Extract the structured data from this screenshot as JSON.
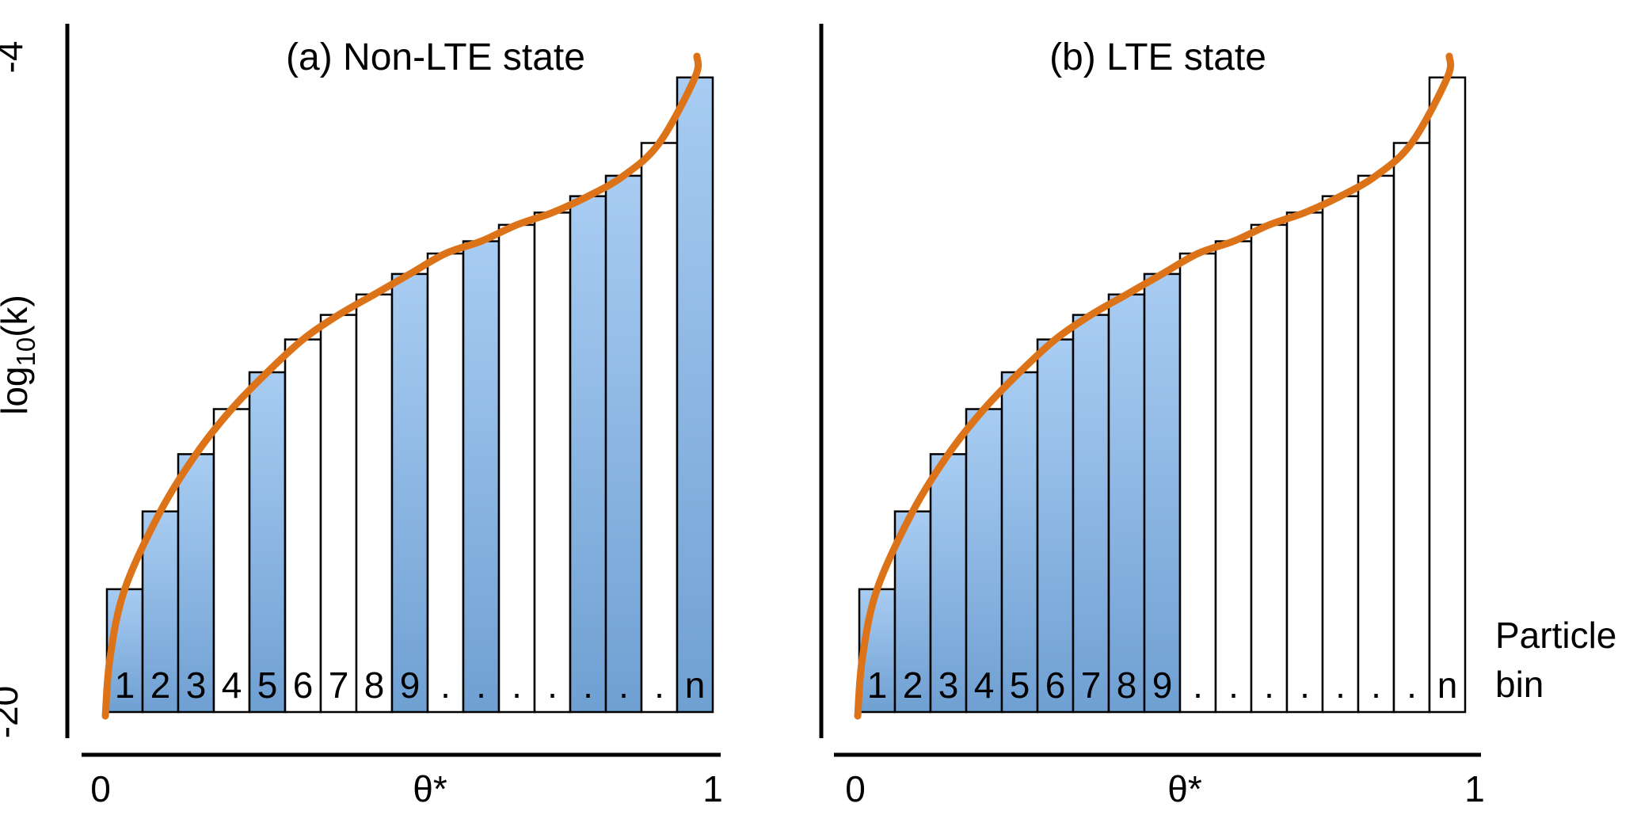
{
  "figure": {
    "colors": {
      "curve_orange": "#dd7318",
      "bar_fill_top": "#a8ccf2",
      "bar_fill_bottom": "#6fa0d2",
      "bar_empty_fill": "#ffffff",
      "bar_stroke": "#000000",
      "axis_color": "#000000",
      "text_color": "#000000"
    },
    "y_axis": {
      "top_value": "-4",
      "bottom_value": "-20",
      "label_log": "log",
      "label_sub": "10",
      "label_k": "(k)"
    },
    "right_annotation": {
      "line1": "Particle",
      "line2": "bin"
    },
    "panels": [
      {
        "title": "(a) Non-LTE state",
        "x_ticks": {
          "zero": "0",
          "theta": "θ*",
          "one": "1"
        }
      },
      {
        "title": "(b) LTE state",
        "x_ticks": {
          "zero": "0",
          "theta": "θ*",
          "one": "1"
        }
      }
    ]
  },
  "chart_data": [
    {
      "type": "bar",
      "title": "(a) Non-LTE state",
      "ylabel": "log10(k)",
      "ylim": [
        -20,
        -4
      ],
      "xlim": [
        0,
        1
      ],
      "x_tick_labels": [
        "0",
        "θ*",
        "1"
      ],
      "theta_star_position": 0.529,
      "categories": [
        "1",
        "2",
        "3",
        "4",
        "5",
        "6",
        "7",
        "8",
        "9",
        ".",
        ".",
        ".",
        ".",
        ".",
        ".",
        ".",
        "n"
      ],
      "values": [
        -17.0,
        -15.1,
        -13.7,
        -12.6,
        -11.7,
        -10.9,
        -10.3,
        -9.8,
        -9.3,
        -8.8,
        -8.5,
        -8.1,
        -7.8,
        -7.4,
        -6.9,
        -6.1,
        -4.5
      ],
      "bar_filled_blue": [
        true,
        true,
        true,
        false,
        true,
        false,
        false,
        false,
        true,
        false,
        true,
        false,
        false,
        true,
        true,
        false,
        true
      ],
      "overlay_curve": {
        "shape": "logit-like smooth curve through bar tops",
        "from": [
          0.0,
          -20
        ],
        "to": [
          0.974,
          -4
        ],
        "color": "#dd7318"
      }
    },
    {
      "type": "bar",
      "title": "(b) LTE state",
      "ylabel": "log10(k)",
      "ylim": [
        -20,
        -4
      ],
      "xlim": [
        0,
        1
      ],
      "x_tick_labels": [
        "0",
        "θ*",
        "1"
      ],
      "theta_star_position": 0.529,
      "categories": [
        "1",
        "2",
        "3",
        "4",
        "5",
        "6",
        "7",
        "8",
        "9",
        ".",
        ".",
        ".",
        ".",
        ".",
        ".",
        ".",
        "n"
      ],
      "values": [
        -17.0,
        -15.1,
        -13.7,
        -12.6,
        -11.7,
        -10.9,
        -10.3,
        -9.8,
        -9.3,
        -8.8,
        -8.5,
        -8.1,
        -7.8,
        -7.4,
        -6.9,
        -6.1,
        -4.5
      ],
      "bar_filled_blue": [
        true,
        true,
        true,
        true,
        true,
        true,
        true,
        true,
        true,
        false,
        false,
        false,
        false,
        false,
        false,
        false,
        false
      ],
      "overlay_curve": {
        "shape": "logit-like smooth curve through bar tops",
        "from": [
          0.0,
          -20
        ],
        "to": [
          0.974,
          -4
        ],
        "color": "#dd7318"
      }
    }
  ]
}
